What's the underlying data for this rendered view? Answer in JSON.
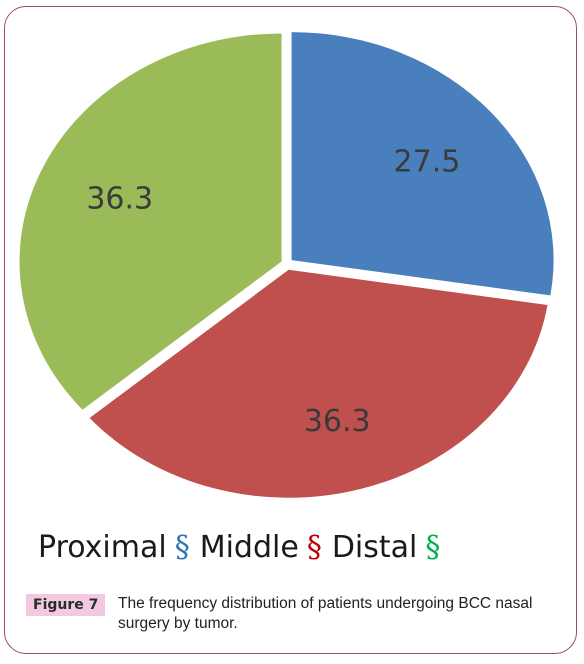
{
  "chart_data": {
    "type": "pie",
    "slices": [
      {
        "name": "Proximal",
        "value": 27.5,
        "label": "27.5",
        "color": "#4a7fbd"
      },
      {
        "name": "Middle",
        "value": 36.3,
        "label": "36.3",
        "color": "#c0504d"
      },
      {
        "name": "Distal",
        "value": 36.3,
        "label": "36.3",
        "color": "#9bbb59"
      }
    ],
    "legend_placement": "bottom",
    "legend_symbol": "§"
  },
  "figure": {
    "label": "Figure 7",
    "caption": "The frequency distribution of patients undergoing BCC nasal surgery by tumor."
  }
}
